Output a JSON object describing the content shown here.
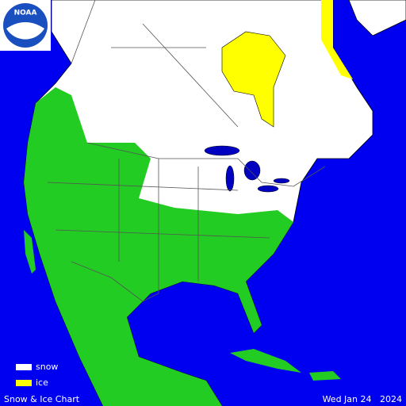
{
  "logo": {
    "text": "NOAA"
  },
  "legend": {
    "items": [
      {
        "label": "snow"
      },
      {
        "label": "ice"
      }
    ]
  },
  "footer": {
    "title": "Snow & Ice Chart",
    "date": "Wed Jan 24   2024"
  }
}
